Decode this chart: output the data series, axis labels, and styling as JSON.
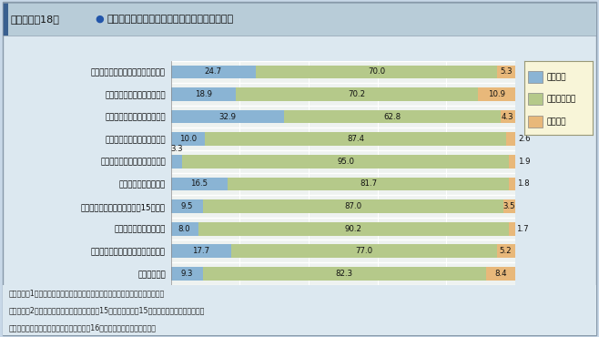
{
  "title": "第１－序－18図  民間企業における学位別等研究者の増減見込み",
  "title_bullet": "●",
  "categories": [
    "研究者数の全従業者数に対する比率",
    "研究者のうち学士号取得者数",
    "研究者のうち修士号取得者数",
    "研究者のうち博士号取得者数",
    "研究者のうちポストドクター数",
    "研究者のうち女性の数",
    "研究者のうち女性の数（平成15年度）",
    "研究者のうち外国人の数",
    "研究者のうち派遣されている人の数",
    "研究支援者数"
  ],
  "increase": [
    24.7,
    18.9,
    32.9,
    10.0,
    3.3,
    16.5,
    9.5,
    8.0,
    17.7,
    9.3
  ],
  "stable": [
    70.0,
    70.2,
    62.8,
    87.4,
    95.0,
    81.7,
    87.0,
    90.2,
    77.0,
    82.3
  ],
  "decrease": [
    5.3,
    10.9,
    4.3,
    2.6,
    1.9,
    1.8,
    3.5,
    1.7,
    5.2,
    8.4
  ],
  "color_increase": "#8ab4d4",
  "color_stable": "#b5c98a",
  "color_decrease": "#e8b87a",
  "legend_labels": [
    "増加する",
    "ほぼ変化なし",
    "減少する"
  ],
  "xlabel": "（％）",
  "footnote1": "（備考）　1．文部科学省「民間企業の研究活動に関する調査報告」より作成。",
  "footnote2": "　　　　　2．「研究者のうち女性の数（平成15年度）」は平成15年度の研究者の増減見込み。",
  "footnote3": "　　　　　　　この項目以外はすべて平成16年度の研究者の増減見込み。",
  "bg_outer": "#c8d8e8",
  "bg_inner": "#dce8f0",
  "bg_chart": "#eef2f0",
  "title_bg": "#b8ccd8",
  "legend_bg": "#f8f5d8"
}
